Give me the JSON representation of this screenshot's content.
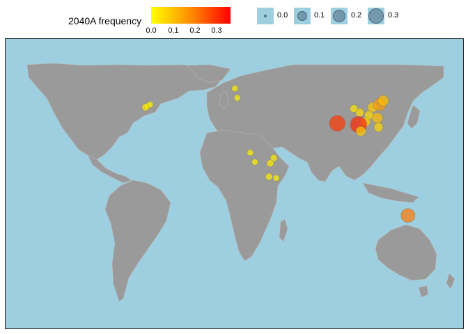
{
  "legend": {
    "color_title": "2040A frequency",
    "color_ticks": [
      "0.0",
      "0.1",
      "0.2",
      "0.3"
    ],
    "color_range": [
      0,
      0.35
    ],
    "color_low": "#FFFF00",
    "color_mid": "#FF8C00",
    "color_high": "#FF0000",
    "size_entries": [
      {
        "label": "0.0",
        "value": 0.0
      },
      {
        "label": "0.1",
        "value": 0.1
      },
      {
        "label": "0.2",
        "value": 0.2
      },
      {
        "label": "0.3",
        "value": 0.3
      }
    ]
  },
  "map": {
    "ocean_color": "#9ECFE0",
    "land_color": "#9A9A9A"
  },
  "points": [
    {
      "region": "eastern-usa",
      "lon": -75,
      "lat": 40,
      "freq": 0.02
    },
    {
      "region": "eastern-usa",
      "lon": -73,
      "lat": 41,
      "freq": 0.02
    },
    {
      "region": "eastern-usa",
      "lon": -77,
      "lat": 39,
      "freq": 0.03
    },
    {
      "region": "uk",
      "lon": -1,
      "lat": 53,
      "freq": 0.02
    },
    {
      "region": "france",
      "lon": 1,
      "lat": 46,
      "freq": 0.02
    },
    {
      "region": "china",
      "lon": 105,
      "lat": 35,
      "freq": 0.05
    },
    {
      "region": "china",
      "lon": 113,
      "lat": 33,
      "freq": 0.06
    },
    {
      "region": "china",
      "lon": 116,
      "lat": 39,
      "freq": 0.08
    },
    {
      "region": "china",
      "lon": 120,
      "lat": 31,
      "freq": 0.1
    },
    {
      "region": "china",
      "lon": 110,
      "lat": 28,
      "freq": 0.07
    },
    {
      "region": "china",
      "lon": 122,
      "lat": 41,
      "freq": 0.15
    },
    {
      "region": "china",
      "lon": 125,
      "lat": 44,
      "freq": 0.1
    },
    {
      "region": "china",
      "lon": 100,
      "lat": 38,
      "freq": 0.04
    },
    {
      "region": "south-china",
      "lon": 104,
      "lat": 26,
      "freq": 0.3
    },
    {
      "region": "nepal",
      "lon": 86,
      "lat": 27,
      "freq": 0.28
    },
    {
      "region": "vietnam",
      "lon": 106,
      "lat": 21,
      "freq": 0.08
    },
    {
      "region": "taiwan",
      "lon": 121,
      "lat": 24,
      "freq": 0.06
    },
    {
      "region": "cameroon",
      "lon": 12,
      "lat": 5,
      "freq": 0.02
    },
    {
      "region": "congo",
      "lon": 16,
      "lat": -2,
      "freq": 0.02
    },
    {
      "region": "east-africa",
      "lon": 32,
      "lat": 1,
      "freq": 0.03
    },
    {
      "region": "great-lakes",
      "lon": 29,
      "lat": -3,
      "freq": 0.03
    },
    {
      "region": "zambia",
      "lon": 28,
      "lat": -13,
      "freq": 0.03
    },
    {
      "region": "malawi",
      "lon": 34,
      "lat": -14,
      "freq": 0.02
    },
    {
      "region": "tasmania",
      "lon": 146,
      "lat": -42,
      "freq": 0.2
    }
  ]
}
